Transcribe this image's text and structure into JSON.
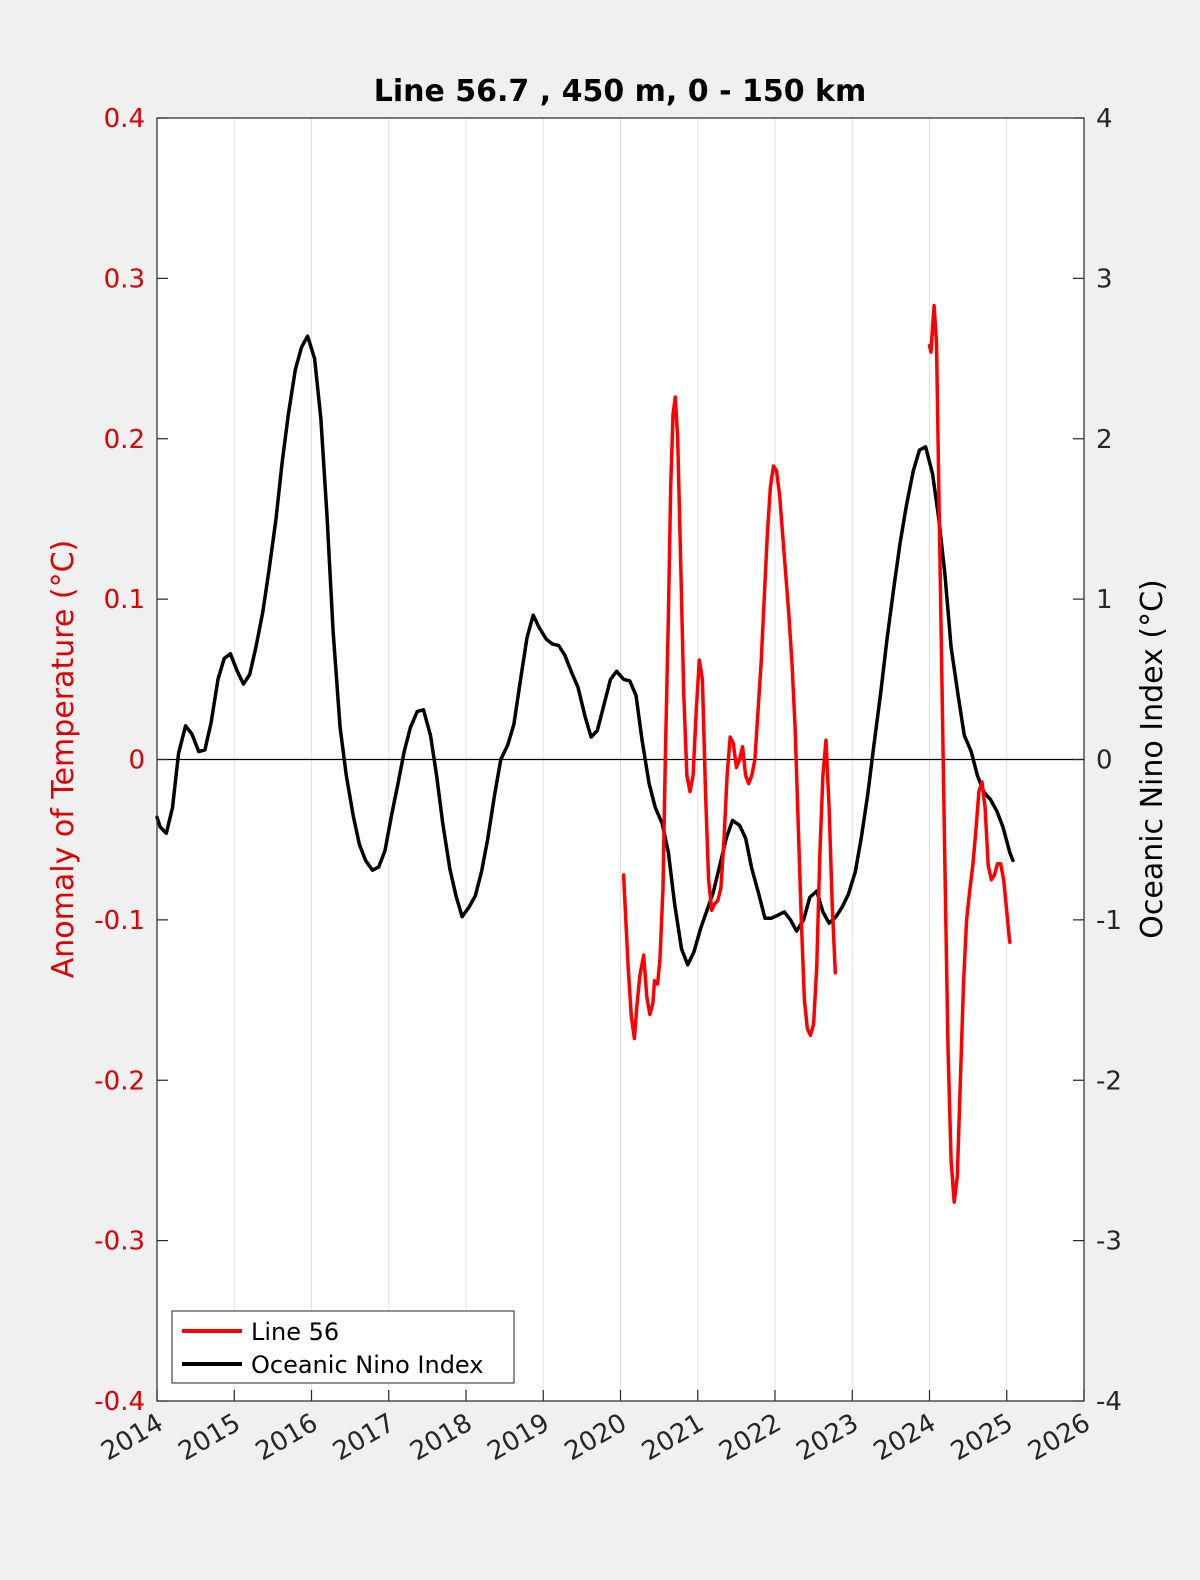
{
  "chart_data": {
    "type": "line",
    "title": "Line 56.7 , 450 m, 0 - 150 km",
    "ylabel_left": "Anomaly of Temperature (°C)",
    "ylabel_right": "Oceanic Nino Index (°C)",
    "xlim": [
      2014,
      2026
    ],
    "ylim_left": [
      -0.4,
      0.4
    ],
    "ylim_right": [
      -4,
      4
    ],
    "x_ticks": [
      "2014",
      "2015",
      "2016",
      "2017",
      "2018",
      "2019",
      "2020",
      "2021",
      "2022",
      "2023",
      "2024",
      "2025",
      "2026"
    ],
    "y_left_ticks": [
      "-0.4",
      "-0.3",
      "-0.2",
      "-0.1",
      "0",
      "0.1",
      "0.2",
      "0.3",
      "0.4"
    ],
    "y_right_ticks": [
      "-4",
      "-3",
      "-2",
      "-1",
      "0",
      "1",
      "2",
      "3",
      "4"
    ],
    "grid": "vertical",
    "zero_line": true,
    "legend_position": "bottom-left",
    "colors": {
      "line56": "#ff0000",
      "oni": "#000000"
    },
    "series": [
      {
        "name": "Line 56",
        "axis": "left",
        "segments": [
          [
            [
              2020.04,
              -0.072
            ],
            [
              2020.1,
              -0.13
            ],
            [
              2020.14,
              -0.16
            ],
            [
              2020.18,
              -0.174
            ],
            [
              2020.21,
              -0.155
            ],
            [
              2020.25,
              -0.135
            ],
            [
              2020.3,
              -0.122
            ],
            [
              2020.34,
              -0.148
            ],
            [
              2020.38,
              -0.159
            ],
            [
              2020.42,
              -0.152
            ],
            [
              2020.44,
              -0.138
            ],
            [
              2020.48,
              -0.14
            ],
            [
              2020.51,
              -0.125
            ],
            [
              2020.55,
              -0.08
            ],
            [
              2020.58,
              0.0
            ],
            [
              2020.62,
              0.09
            ],
            [
              2020.65,
              0.17
            ],
            [
              2020.68,
              0.215
            ],
            [
              2020.71,
              0.226
            ],
            [
              2020.74,
              0.2
            ],
            [
              2020.78,
              0.12
            ],
            [
              2020.82,
              0.04
            ],
            [
              2020.86,
              -0.01
            ],
            [
              2020.9,
              -0.02
            ],
            [
              2020.94,
              -0.01
            ],
            [
              2020.98,
              0.03
            ],
            [
              2021.02,
              0.062
            ],
            [
              2021.06,
              0.05
            ],
            [
              2021.1,
              -0.02
            ],
            [
              2021.14,
              -0.075
            ],
            [
              2021.18,
              -0.094
            ],
            [
              2021.22,
              -0.09
            ],
            [
              2021.26,
              -0.088
            ],
            [
              2021.3,
              -0.08
            ],
            [
              2021.34,
              -0.05
            ],
            [
              2021.38,
              -0.01
            ],
            [
              2021.42,
              0.014
            ],
            [
              2021.46,
              0.01
            ],
            [
              2021.5,
              -0.005
            ],
            [
              2021.54,
              0.0
            ],
            [
              2021.58,
              0.008
            ],
            [
              2021.62,
              -0.01
            ],
            [
              2021.66,
              -0.015
            ],
            [
              2021.7,
              -0.01
            ],
            [
              2021.74,
              0.0
            ],
            [
              2021.78,
              0.03
            ],
            [
              2021.82,
              0.06
            ],
            [
              2021.86,
              0.1
            ],
            [
              2021.9,
              0.14
            ],
            [
              2021.94,
              0.17
            ],
            [
              2021.98,
              0.183
            ],
            [
              2022.02,
              0.18
            ],
            [
              2022.06,
              0.165
            ],
            [
              2022.1,
              0.14
            ],
            [
              2022.14,
              0.115
            ],
            [
              2022.18,
              0.09
            ],
            [
              2022.22,
              0.06
            ],
            [
              2022.26,
              0.02
            ],
            [
              2022.3,
              -0.04
            ],
            [
              2022.34,
              -0.1
            ],
            [
              2022.38,
              -0.15
            ],
            [
              2022.42,
              -0.168
            ],
            [
              2022.46,
              -0.172
            ],
            [
              2022.5,
              -0.165
            ],
            [
              2022.54,
              -0.13
            ],
            [
              2022.58,
              -0.06
            ],
            [
              2022.62,
              -0.01
            ],
            [
              2022.66,
              0.012
            ],
            [
              2022.7,
              -0.03
            ],
            [
              2022.74,
              -0.09
            ],
            [
              2022.78,
              -0.133
            ]
          ],
          [
            [
              2024.0,
              0.258
            ],
            [
              2024.02,
              0.254
            ],
            [
              2024.04,
              0.27
            ],
            [
              2024.06,
              0.283
            ],
            [
              2024.09,
              0.26
            ],
            [
              2024.12,
              0.17
            ],
            [
              2024.16,
              0.05
            ],
            [
              2024.2,
              -0.07
            ],
            [
              2024.24,
              -0.18
            ],
            [
              2024.28,
              -0.25
            ],
            [
              2024.32,
              -0.276
            ],
            [
              2024.36,
              -0.26
            ],
            [
              2024.4,
              -0.2
            ],
            [
              2024.44,
              -0.14
            ],
            [
              2024.48,
              -0.1
            ],
            [
              2024.52,
              -0.082
            ],
            [
              2024.56,
              -0.066
            ],
            [
              2024.6,
              -0.045
            ],
            [
              2024.64,
              -0.02
            ],
            [
              2024.68,
              -0.014
            ],
            [
              2024.72,
              -0.03
            ],
            [
              2024.76,
              -0.066
            ],
            [
              2024.8,
              -0.075
            ],
            [
              2024.84,
              -0.072
            ],
            [
              2024.88,
              -0.065
            ],
            [
              2024.92,
              -0.065
            ],
            [
              2024.96,
              -0.075
            ],
            [
              2025.0,
              -0.095
            ],
            [
              2025.03,
              -0.11
            ],
            [
              2025.04,
              -0.114
            ]
          ]
        ]
      },
      {
        "name": "Oceanic Nino Index",
        "axis": "right",
        "points": [
          [
            2014.0,
            -0.36
          ],
          [
            2014.04,
            -0.42
          ],
          [
            2014.12,
            -0.46
          ],
          [
            2014.2,
            -0.3
          ],
          [
            2014.28,
            0.04
          ],
          [
            2014.37,
            0.21
          ],
          [
            2014.45,
            0.16
          ],
          [
            2014.54,
            0.05
          ],
          [
            2014.62,
            0.06
          ],
          [
            2014.7,
            0.23
          ],
          [
            2014.79,
            0.5
          ],
          [
            2014.87,
            0.63
          ],
          [
            2014.95,
            0.66
          ],
          [
            2015.04,
            0.55
          ],
          [
            2015.12,
            0.47
          ],
          [
            2015.2,
            0.53
          ],
          [
            2015.28,
            0.7
          ],
          [
            2015.37,
            0.92
          ],
          [
            2015.45,
            1.18
          ],
          [
            2015.54,
            1.5
          ],
          [
            2015.62,
            1.85
          ],
          [
            2015.7,
            2.15
          ],
          [
            2015.79,
            2.43
          ],
          [
            2015.87,
            2.57
          ],
          [
            2015.95,
            2.64
          ],
          [
            2016.04,
            2.5
          ],
          [
            2016.12,
            2.13
          ],
          [
            2016.2,
            1.52
          ],
          [
            2016.28,
            0.8
          ],
          [
            2016.37,
            0.2
          ],
          [
            2016.45,
            -0.1
          ],
          [
            2016.54,
            -0.35
          ],
          [
            2016.62,
            -0.53
          ],
          [
            2016.7,
            -0.63
          ],
          [
            2016.79,
            -0.69
          ],
          [
            2016.87,
            -0.67
          ],
          [
            2016.95,
            -0.57
          ],
          [
            2017.04,
            -0.34
          ],
          [
            2017.12,
            -0.15
          ],
          [
            2017.2,
            0.05
          ],
          [
            2017.28,
            0.2
          ],
          [
            2017.37,
            0.3
          ],
          [
            2017.45,
            0.31
          ],
          [
            2017.54,
            0.15
          ],
          [
            2017.62,
            -0.1
          ],
          [
            2017.7,
            -0.4
          ],
          [
            2017.79,
            -0.68
          ],
          [
            2017.87,
            -0.85
          ],
          [
            2017.95,
            -0.98
          ],
          [
            2018.04,
            -0.92
          ],
          [
            2018.12,
            -0.85
          ],
          [
            2018.2,
            -0.7
          ],
          [
            2018.28,
            -0.5
          ],
          [
            2018.37,
            -0.22
          ],
          [
            2018.45,
            0.0
          ],
          [
            2018.54,
            0.09
          ],
          [
            2018.62,
            0.22
          ],
          [
            2018.7,
            0.48
          ],
          [
            2018.79,
            0.76
          ],
          [
            2018.87,
            0.9
          ],
          [
            2018.95,
            0.82
          ],
          [
            2019.04,
            0.75
          ],
          [
            2019.12,
            0.72
          ],
          [
            2019.2,
            0.71
          ],
          [
            2019.28,
            0.65
          ],
          [
            2019.37,
            0.54
          ],
          [
            2019.45,
            0.45
          ],
          [
            2019.54,
            0.27
          ],
          [
            2019.62,
            0.14
          ],
          [
            2019.7,
            0.18
          ],
          [
            2019.79,
            0.35
          ],
          [
            2019.87,
            0.5
          ],
          [
            2019.95,
            0.55
          ],
          [
            2020.04,
            0.5
          ],
          [
            2020.12,
            0.49
          ],
          [
            2020.2,
            0.4
          ],
          [
            2020.28,
            0.12
          ],
          [
            2020.37,
            -0.15
          ],
          [
            2020.45,
            -0.3
          ],
          [
            2020.54,
            -0.4
          ],
          [
            2020.62,
            -0.58
          ],
          [
            2020.7,
            -0.9
          ],
          [
            2020.79,
            -1.18
          ],
          [
            2020.87,
            -1.28
          ],
          [
            2020.95,
            -1.2
          ],
          [
            2021.04,
            -1.05
          ],
          [
            2021.12,
            -0.94
          ],
          [
            2021.2,
            -0.83
          ],
          [
            2021.28,
            -0.67
          ],
          [
            2021.37,
            -0.49
          ],
          [
            2021.45,
            -0.38
          ],
          [
            2021.54,
            -0.41
          ],
          [
            2021.62,
            -0.49
          ],
          [
            2021.7,
            -0.68
          ],
          [
            2021.79,
            -0.84
          ],
          [
            2021.87,
            -0.99
          ],
          [
            2021.95,
            -0.99
          ],
          [
            2022.04,
            -0.97
          ],
          [
            2022.12,
            -0.95
          ],
          [
            2022.2,
            -1.0
          ],
          [
            2022.28,
            -1.07
          ],
          [
            2022.37,
            -1.0
          ],
          [
            2022.45,
            -0.86
          ],
          [
            2022.54,
            -0.82
          ],
          [
            2022.62,
            -0.95
          ],
          [
            2022.7,
            -1.02
          ],
          [
            2022.79,
            -0.98
          ],
          [
            2022.87,
            -0.92
          ],
          [
            2022.95,
            -0.84
          ],
          [
            2023.04,
            -0.7
          ],
          [
            2023.12,
            -0.48
          ],
          [
            2023.2,
            -0.22
          ],
          [
            2023.28,
            0.09
          ],
          [
            2023.37,
            0.42
          ],
          [
            2023.45,
            0.75
          ],
          [
            2023.54,
            1.08
          ],
          [
            2023.62,
            1.35
          ],
          [
            2023.7,
            1.58
          ],
          [
            2023.79,
            1.8
          ],
          [
            2023.87,
            1.93
          ],
          [
            2023.95,
            1.95
          ],
          [
            2024.04,
            1.78
          ],
          [
            2024.12,
            1.5
          ],
          [
            2024.2,
            1.15
          ],
          [
            2024.28,
            0.7
          ],
          [
            2024.37,
            0.4
          ],
          [
            2024.45,
            0.15
          ],
          [
            2024.54,
            0.05
          ],
          [
            2024.62,
            -0.1
          ],
          [
            2024.7,
            -0.2
          ],
          [
            2024.79,
            -0.25
          ],
          [
            2024.87,
            -0.32
          ],
          [
            2024.95,
            -0.42
          ],
          [
            2025.04,
            -0.58
          ],
          [
            2025.08,
            -0.63
          ]
        ]
      }
    ]
  }
}
